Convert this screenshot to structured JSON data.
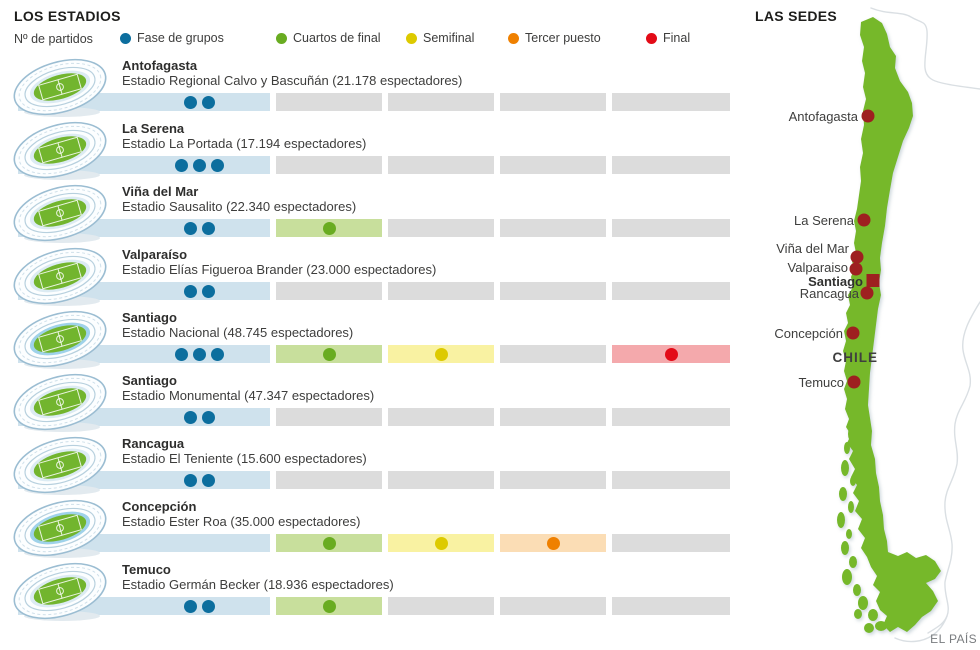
{
  "header": {
    "title": "LOS ESTADIOS",
    "matches_label": "Nº de partidos"
  },
  "legend": {
    "phases": [
      {
        "label": "Fase de grupos",
        "color": "#0c6e9e",
        "light": "#cfe2ed"
      },
      {
        "label": "Cuartos de final",
        "color": "#69ac21",
        "light": "#c8df9c"
      },
      {
        "label": "Semifinal",
        "color": "#ddca00",
        "light": "#f9f2a2"
      },
      {
        "label": "Tercer puesto",
        "color": "#ef8000",
        "light": "#fbddb5"
      },
      {
        "label": "Final",
        "color": "#e30b17",
        "light": "#f4a9ac"
      }
    ],
    "inactive_color": "#dcdcdc"
  },
  "stadiums": [
    {
      "city": "Antofagasta",
      "detail": "Estadio Regional Calvo y Bascuñán (21.178 espectadores)",
      "matches": [
        2,
        0,
        0,
        0,
        0
      ],
      "icon": "plain"
    },
    {
      "city": "La Serena",
      "detail": "Estadio La Portada (17.194 espectadores)",
      "matches": [
        3,
        0,
        0,
        0,
        0
      ],
      "icon": "plain"
    },
    {
      "city": "Viña del Mar",
      "detail": "Estadio Sausalito (22.340 espectadores)",
      "matches": [
        2,
        1,
        0,
        0,
        0
      ],
      "icon": "plain"
    },
    {
      "city": "Valparaíso",
      "detail": "Estadio Elías Figueroa Brander (23.000 espectadores)",
      "matches": [
        2,
        0,
        0,
        0,
        0
      ],
      "icon": "plain"
    },
    {
      "city": "Santiago",
      "detail": "Estadio Nacional (48.745 espectadores)",
      "matches": [
        3,
        1,
        1,
        0,
        1
      ],
      "icon": "track"
    },
    {
      "city": "Santiago",
      "detail": "Estadio Monumental (47.347 espectadores)",
      "matches": [
        2,
        0,
        0,
        0,
        0
      ],
      "icon": "plain"
    },
    {
      "city": "Rancagua",
      "detail": "Estadio El Teniente (15.600 espectadores)",
      "matches": [
        2,
        0,
        0,
        0,
        0
      ],
      "icon": "plain"
    },
    {
      "city": "Concepción",
      "detail": "Estadio Ester Roa (35.000 espectadores)",
      "matches": [
        0,
        1,
        1,
        1,
        0
      ],
      "icon": "track"
    },
    {
      "city": "Temuco",
      "detail": "Estadio Germán Becker (18.936 espectadores)",
      "matches": [
        2,
        1,
        0,
        0,
        0
      ],
      "icon": "plain"
    }
  ],
  "map": {
    "title": "LAS SEDES",
    "country_label": "CHILE",
    "credit": "EL PAÍS",
    "colors": {
      "country": "#76b82a",
      "marker": "#9e2020"
    },
    "cities": [
      {
        "label": "Antofagasta"
      },
      {
        "label": "La Serena"
      },
      {
        "label": "Viña del Mar"
      },
      {
        "label": "Valparaiso"
      },
      {
        "label": "Santiago",
        "marker": "square",
        "bold": true
      },
      {
        "label": "Rancagua"
      },
      {
        "label": "Concepción"
      },
      {
        "label": "Temuco"
      }
    ]
  }
}
